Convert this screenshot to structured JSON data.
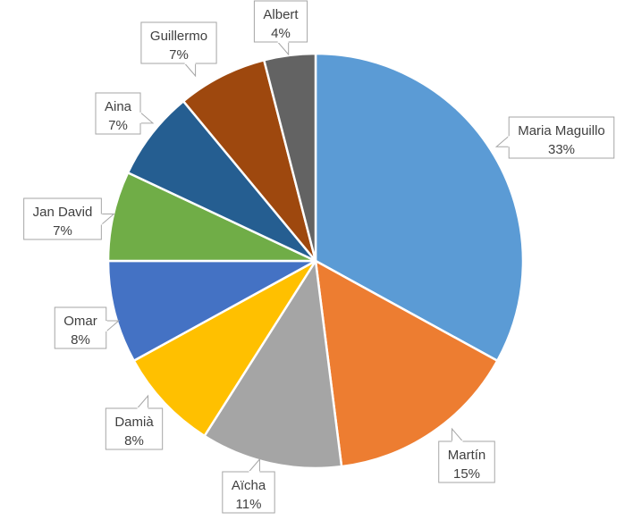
{
  "chart_data": {
    "type": "pie",
    "title": "",
    "start_angle_deg": 0,
    "direction": "clockwise",
    "slices": [
      {
        "label": "Maria Maguillo",
        "value": 33,
        "display": "33%",
        "color": "#5B9BD5"
      },
      {
        "label": "Martín",
        "value": 15,
        "display": "15%",
        "color": "#ED7D31"
      },
      {
        "label": "Aïcha",
        "value": 11,
        "display": "11%",
        "color": "#A5A5A5"
      },
      {
        "label": "Damià",
        "value": 8,
        "display": "8%",
        "color": "#FFC000"
      },
      {
        "label": "Omar",
        "value": 8,
        "display": "8%",
        "color": "#4472C4"
      },
      {
        "label": "Jan David",
        "value": 7,
        "display": "7%",
        "color": "#70AD47"
      },
      {
        "label": "Aina",
        "value": 7,
        "display": "7%",
        "color": "#255E91"
      },
      {
        "label": "Guillermo",
        "value": 7,
        "display": "7%",
        "color": "#9E480E"
      },
      {
        "label": "Albert",
        "value": 4,
        "display": "4%",
        "color": "#636363"
      }
    ]
  }
}
